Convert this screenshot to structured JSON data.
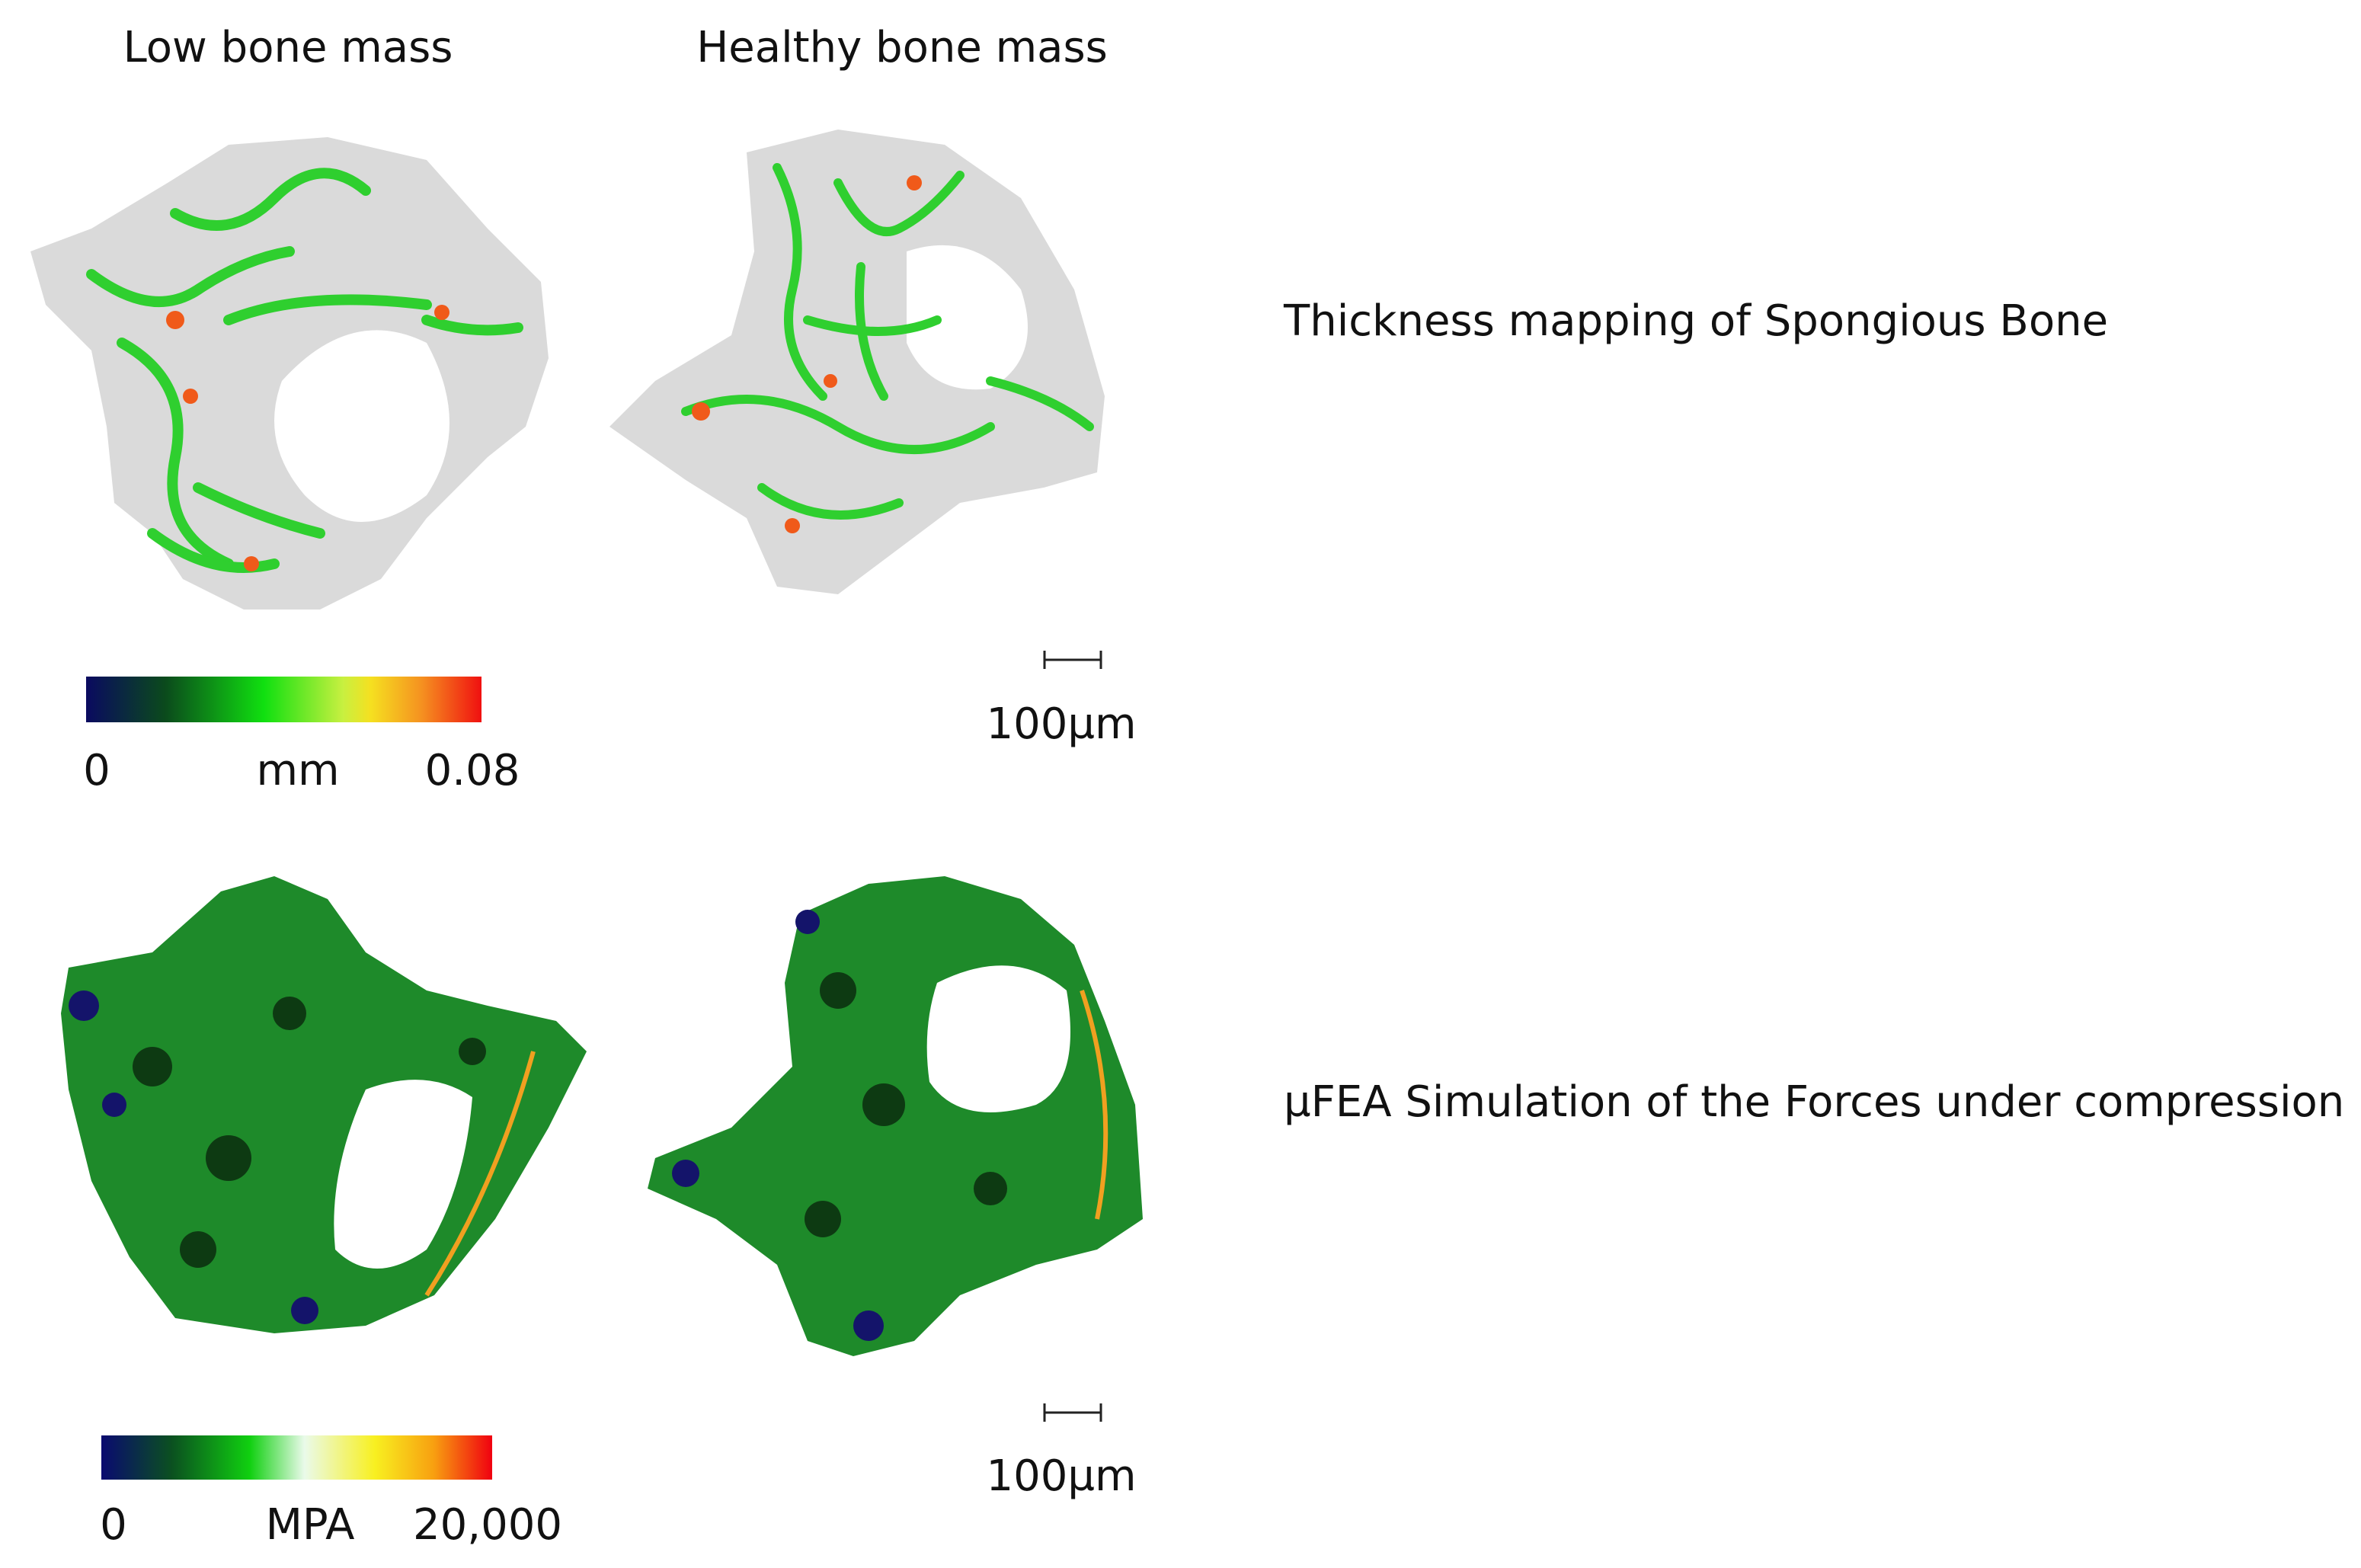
{
  "columns": [
    "Low bone mass",
    "Healthy bone mass"
  ],
  "rows": [
    {
      "label": "Thickness mapping of Spongious Bone",
      "colorbar": {
        "min": "0",
        "unit": "mm",
        "max": "0.08"
      },
      "scale_bar": "100µm"
    },
    {
      "label": "µFEA Simulation of the Forces under compression",
      "colorbar": {
        "min": "0",
        "unit": "MPA",
        "max": "20,000"
      },
      "scale_bar": "100µm"
    }
  ]
}
